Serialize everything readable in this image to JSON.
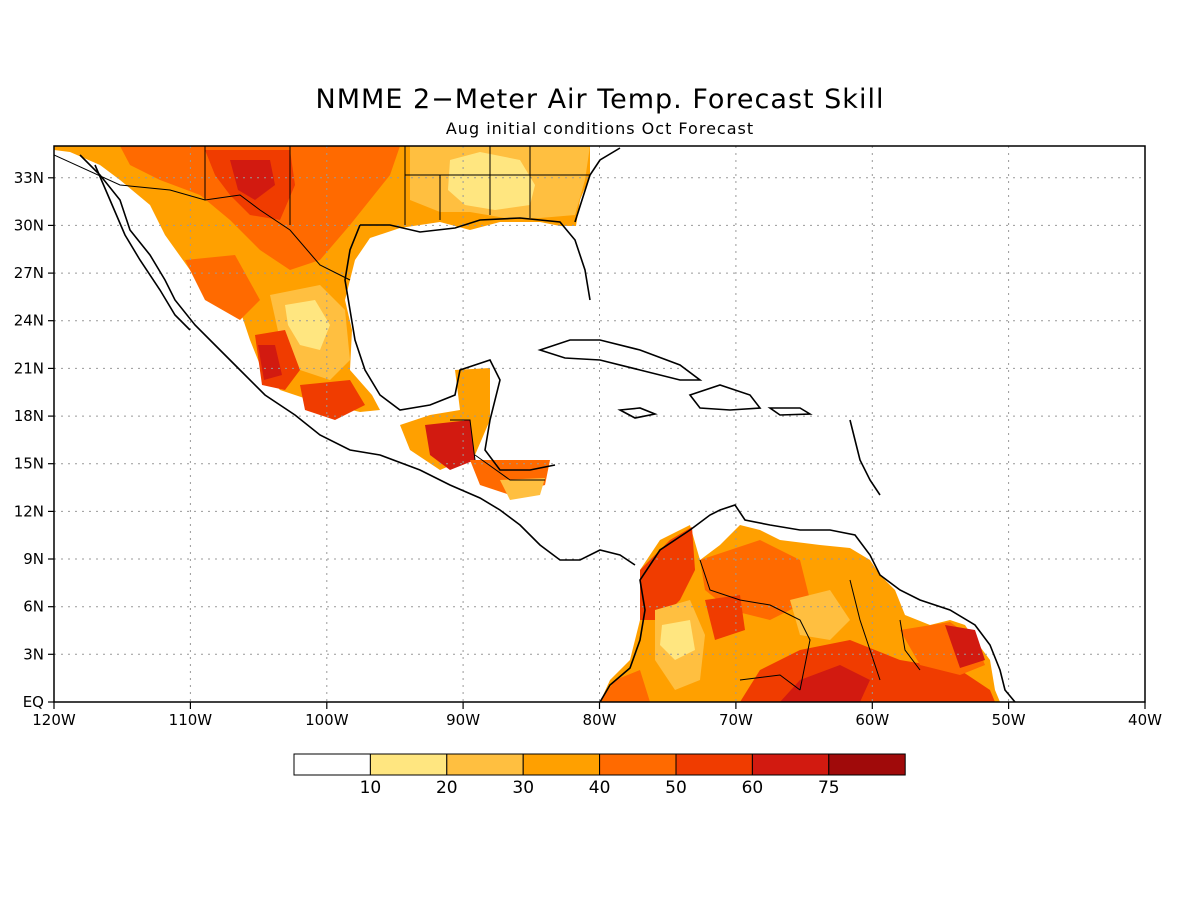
{
  "title": "NMME 2−Meter Air Temp. Forecast Skill",
  "subtitle": "Aug initial conditions  Oct Forecast",
  "map": {
    "lon_range": [
      -120,
      -40
    ],
    "lat_range": [
      0,
      35
    ],
    "x_ticks": [
      "120W",
      "110W",
      "100W",
      "90W",
      "80W",
      "70W",
      "60W",
      "50W",
      "40W"
    ],
    "y_ticks": [
      "EQ",
      "3N",
      "6N",
      "9N",
      "12N",
      "15N",
      "18N",
      "21N",
      "24N",
      "27N",
      "30N",
      "33N"
    ],
    "grid": true
  },
  "colorbar": {
    "labels": [
      "10",
      "20",
      "30",
      "40",
      "50",
      "60",
      "75"
    ],
    "colors": [
      "#ffffff",
      "#ffe680",
      "#ffbf40",
      "#ffa000",
      "#ff6a00",
      "#f03c00",
      "#d21a10",
      "#a00a0a"
    ]
  }
}
